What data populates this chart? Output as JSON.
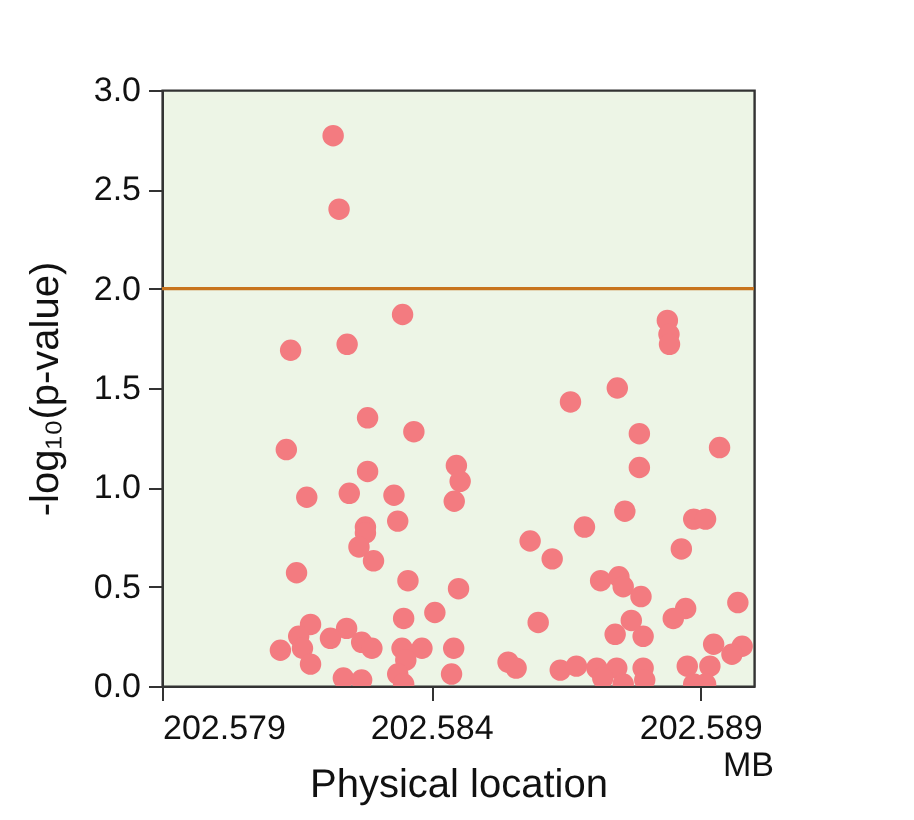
{
  "chart_data": {
    "type": "scatter",
    "xlabel": "Physical location",
    "ylabel": "-log₁₀(p-value)",
    "annotations": [
      "MB"
    ],
    "xlim": [
      202.579,
      202.59
    ],
    "xticks": [
      202.579,
      202.584,
      202.589
    ],
    "ylim": [
      0,
      3
    ],
    "yticks": [
      {
        "value": 0,
        "label": "0.0"
      },
      {
        "value": 0.5,
        "label": "0.5"
      },
      {
        "value": 1,
        "label": "1.0"
      },
      {
        "value": 1.5,
        "label": "1.5"
      },
      {
        "value": 2,
        "label": "2.0"
      },
      {
        "value": 2.5,
        "label": "2.5"
      },
      {
        "value": 3,
        "label": "3.0"
      }
    ],
    "grid": false,
    "legend": false,
    "marker": "circle",
    "ref_lines": [
      {
        "axis": "y",
        "value": 2,
        "color": "#c8741e"
      }
    ],
    "series": [
      {
        "color": "#f37b80",
        "x": [
          202.58218,
          202.58229,
          202.58347,
          202.58139,
          202.58244,
          202.58282,
          202.58368,
          202.58131,
          202.58447,
          202.58454,
          202.58443,
          202.58282,
          202.58169,
          202.58248,
          202.58331,
          202.58338,
          202.58278,
          202.58278,
          202.58266,
          202.58293,
          202.5815,
          202.58357,
          202.58451,
          202.58407,
          202.58349,
          202.58176,
          202.58243,
          202.58213,
          202.58154,
          202.5812,
          202.58161,
          202.58176,
          202.58271,
          202.5829,
          202.58237,
          202.58271,
          202.58346,
          202.58383,
          202.58353,
          202.58338,
          202.58349,
          202.58442,
          202.58543,
          202.58438,
          202.58558,
          202.58746,
          202.58659,
          202.58787,
          202.58936,
          202.58787,
          202.5876,
          202.58888,
          202.5891,
          202.58685,
          202.58584,
          202.58865,
          202.58625,
          202.58715,
          202.58749,
          202.58757,
          202.5879,
          202.5897,
          202.58873,
          202.5885,
          202.58599,
          202.58772,
          202.58742,
          202.58794,
          202.58925,
          202.58978,
          202.58959,
          202.5864,
          202.5867,
          202.58708,
          202.58745,
          202.58719,
          202.58757,
          202.58794,
          202.58797,
          202.58876,
          202.58918,
          202.58888,
          202.5891,
          202.58839,
          202.58842,
          202.58843
        ],
        "values": [
          2.77,
          2.4,
          1.87,
          1.69,
          1.72,
          1.35,
          1.28,
          1.19,
          1.11,
          1.03,
          0.93,
          1.08,
          0.95,
          0.97,
          0.96,
          0.83,
          0.8,
          0.77,
          0.7,
          0.63,
          0.57,
          0.53,
          0.49,
          0.37,
          0.34,
          0.31,
          0.29,
          0.24,
          0.25,
          0.18,
          0.19,
          0.11,
          0.22,
          0.19,
          0.04,
          0.03,
          0.19,
          0.19,
          0.13,
          0.06,
          0.01,
          0.19,
          0.12,
          0.06,
          0.09,
          1.5,
          1.43,
          1.27,
          1.2,
          1.1,
          0.88,
          0.84,
          0.84,
          0.8,
          0.73,
          0.69,
          0.64,
          0.53,
          0.55,
          0.5,
          0.45,
          0.42,
          0.39,
          0.34,
          0.32,
          0.33,
          0.26,
          0.25,
          0.21,
          0.2,
          0.16,
          0.08,
          0.1,
          0.09,
          0.09,
          0.04,
          0.01,
          0.09,
          0.03,
          0.1,
          0.1,
          0.01,
          0.01,
          1.84,
          1.77,
          1.72
        ]
      }
    ]
  }
}
